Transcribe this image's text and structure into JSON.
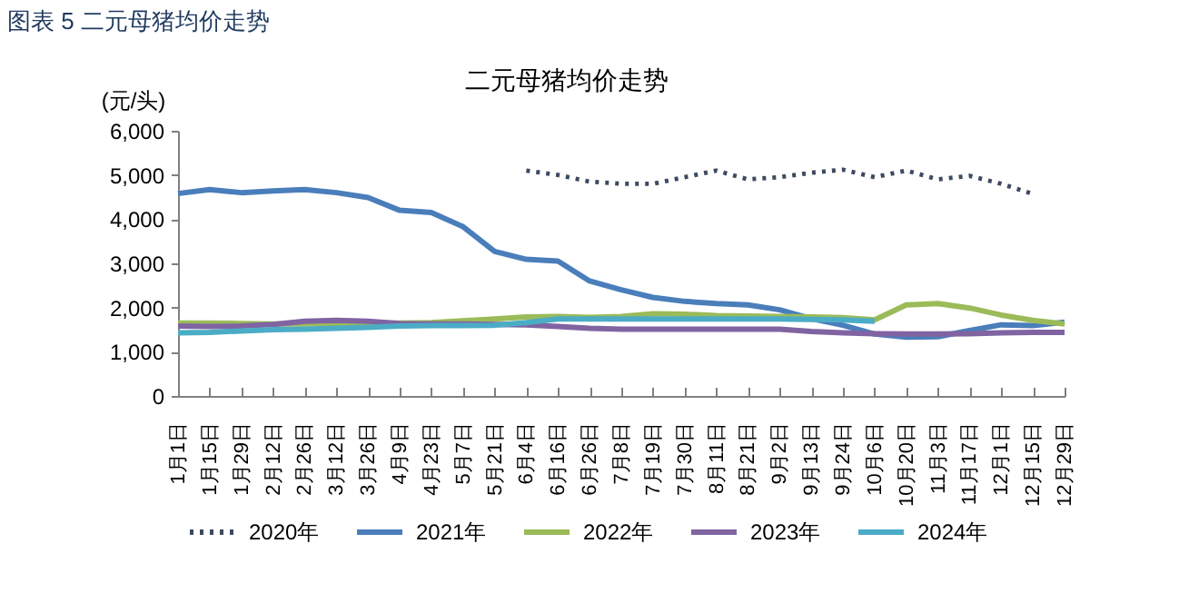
{
  "chart_data": {
    "type": "line",
    "title": "二元母猪均价走势",
    "ylabel": "(元/头)",
    "annotations": [
      "图表 5 二元母猪均价走势"
    ],
    "categories": [
      "1月1日",
      "1月15日",
      "1月29日",
      "2月12日",
      "2月26日",
      "3月12日",
      "3月26日",
      "4月9日",
      "4月23日",
      "5月7日",
      "5月21日",
      "6月4日",
      "6月16日",
      "6月26日",
      "7月8日",
      "7月19日",
      "7月30日",
      "8月11日",
      "8月21日",
      "9月2日",
      "9月13日",
      "9月24日",
      "10月6日",
      "10月20日",
      "11月3日",
      "11月17日",
      "12月1日",
      "12月15日",
      "12月29日"
    ],
    "series": [
      {
        "name": "2020年",
        "color": "#3d4a60",
        "line_style": "dotted",
        "values": [
          null,
          null,
          null,
          null,
          null,
          null,
          null,
          null,
          null,
          null,
          null,
          5100,
          5000,
          4850,
          4800,
          4800,
          4950,
          5100,
          4900,
          4950,
          5050,
          5120,
          4950,
          5100,
          4900,
          4980,
          4800,
          4570,
          null
        ]
      },
      {
        "name": "2021年",
        "color": "#4a7ebb",
        "values": [
          4580,
          4670,
          4600,
          4640,
          4670,
          4600,
          4490,
          4200,
          4150,
          3830,
          3270,
          3090,
          3050,
          2600,
          2400,
          2230,
          2140,
          2090,
          2060,
          1950,
          1750,
          1600,
          1400,
          1330,
          1340,
          1480,
          1610,
          1590,
          1670
        ]
      },
      {
        "name": "2022年",
        "color": "#9bbb59",
        "values": [
          1650,
          1650,
          1640,
          1630,
          1630,
          1640,
          1640,
          1650,
          1660,
          1700,
          1740,
          1790,
          1800,
          1780,
          1800,
          1860,
          1850,
          1820,
          1810,
          1800,
          1790,
          1770,
          1720,
          2060,
          2090,
          1990,
          1830,
          1710,
          1630
        ]
      },
      {
        "name": "2023年",
        "color": "#8064a2",
        "values": [
          1580,
          1570,
          1580,
          1620,
          1690,
          1710,
          1690,
          1640,
          1630,
          1630,
          1620,
          1610,
          1570,
          1530,
          1510,
          1510,
          1510,
          1510,
          1510,
          1510,
          1460,
          1430,
          1410,
          1400,
          1400,
          1410,
          1430,
          1440,
          1440
        ]
      },
      {
        "name": "2024年",
        "color": "#4bacc6",
        "values": [
          1430,
          1440,
          1470,
          1500,
          1510,
          1530,
          1550,
          1580,
          1590,
          1590,
          1600,
          1660,
          1740,
          1740,
          1740,
          1740,
          1740,
          1740,
          1740,
          1740,
          1730,
          1720,
          1690,
          null,
          null,
          null,
          null,
          null,
          null
        ]
      }
    ],
    "ylim": [
      0,
      6000
    ],
    "yticks": [
      0,
      {
        "value": 1000,
        "label": "1,000"
      },
      {
        "value": 2000,
        "label": "2,000"
      },
      {
        "value": 3000,
        "label": "3,000"
      },
      {
        "value": 4000,
        "label": "4,000"
      },
      {
        "value": 5000,
        "label": "5,000"
      },
      {
        "value": 6000,
        "label": "6,000"
      }
    ],
    "legend": "bottom"
  }
}
